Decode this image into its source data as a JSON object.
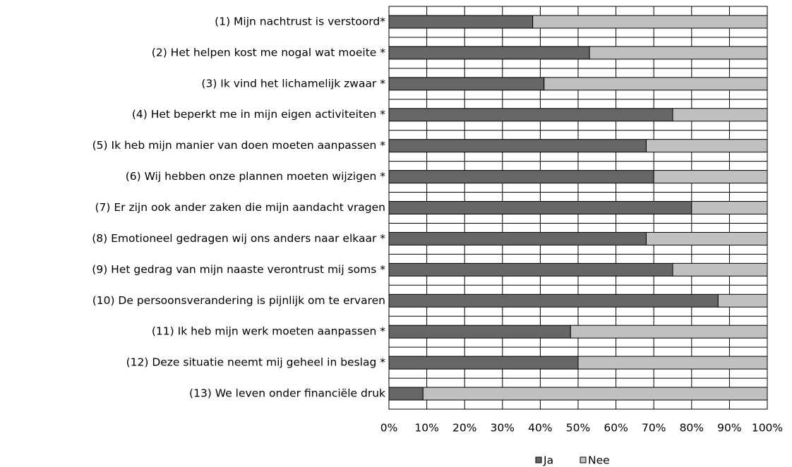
{
  "chart_data": {
    "type": "stacked-bar-horizontal",
    "categories": [
      "(1) Mijn nachtrust is verstoord*",
      "(2) Het helpen kost me nogal wat moeite *",
      "(3) Ik vind het lichamelijk zwaar *",
      "(4) Het beperkt me in mijn eigen activiteiten *",
      "(5) Ik heb mijn manier van doen moeten aanpassen *",
      "(6) Wij hebben onze plannen moeten wijzigen *",
      "(7) Er zijn ook ander zaken die mijn aandacht vragen",
      "(8) Emotioneel gedragen wij ons anders naar elkaar *",
      "(9) Het gedrag van mijn naaste verontrust mij soms  *",
      "(10) De persoonsverandering is pijnlijk om te ervaren",
      "(11) Ik heb mijn werk moeten aanpassen *",
      "(12) Deze situatie neemt mij geheel in beslag *",
      "(13) We leven onder financiële druk"
    ],
    "series": [
      {
        "name": "Ja",
        "color": "#666666",
        "values": [
          38,
          53,
          41,
          75,
          68,
          70,
          80,
          68,
          75,
          87,
          48,
          50,
          9
        ]
      },
      {
        "name": "Nee",
        "color": "#c0c0c0",
        "values": [
          62,
          47,
          59,
          25,
          32,
          30,
          20,
          32,
          25,
          13,
          52,
          50,
          91
        ]
      }
    ],
    "xlim": [
      0,
      100
    ],
    "xticks": [
      {
        "value": 0,
        "label": "0%"
      },
      {
        "value": 10,
        "label": "10%"
      },
      {
        "value": 20,
        "label": "20%"
      },
      {
        "value": 30,
        "label": "30%"
      },
      {
        "value": 40,
        "label": "40%"
      },
      {
        "value": 50,
        "label": "50%"
      },
      {
        "value": 60,
        "label": "60%"
      },
      {
        "value": 70,
        "label": "70%"
      },
      {
        "value": 80,
        "label": "80%"
      },
      {
        "value": 90,
        "label": "90%"
      },
      {
        "value": 100,
        "label": "100%"
      }
    ],
    "grid": true,
    "legend": "bottom"
  }
}
